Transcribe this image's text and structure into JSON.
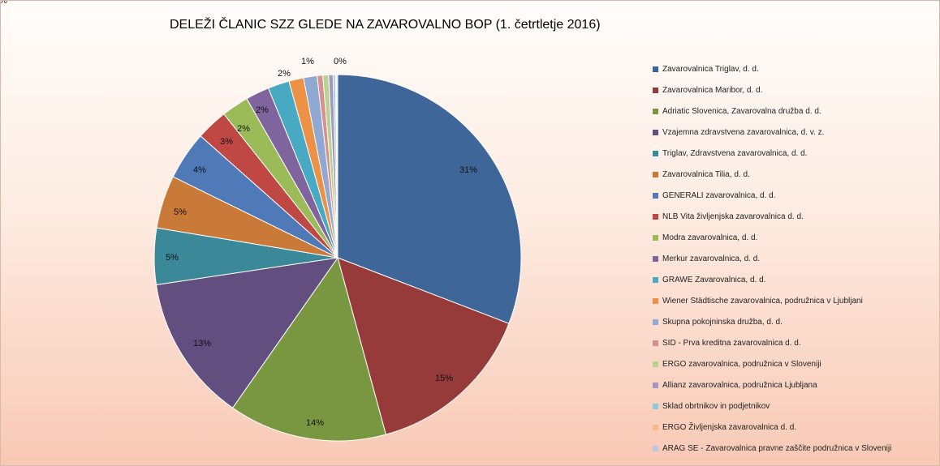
{
  "chart_data": {
    "type": "pie",
    "title": "DELEŽI ČLANIC SZZ GLEDE NA ZAVAROVALNO BOP (1. četrtletje 2016)",
    "legend_position": "right",
    "slices": [
      {
        "name": "Zavarovalnica Triglav, d. d.",
        "value": 31,
        "label": "31%",
        "color": "#3f6698"
      },
      {
        "name": "Zavarovalnica Maribor, d. d.",
        "value": 15,
        "label": "15%",
        "color": "#973b3a"
      },
      {
        "name": "Adriatic Slovenica, Zavarovalna družba d. d.",
        "value": 14,
        "label": "14%",
        "color": "#799641"
      },
      {
        "name": "Vzajemna zdravstvena zavarovalnica, d. v. z.",
        "value": 13,
        "label": "13%",
        "color": "#634e80"
      },
      {
        "name": "Triglav, Zdravstvena zavarovalnica, d. d.",
        "value": 5,
        "label": "5%",
        "color": "#3a8898"
      },
      {
        "name": "Zavarovalnica Tilia, d. d.",
        "value": 4.7,
        "label": "5%",
        "color": "#c97a38"
      },
      {
        "name": "GENERALI zavarovalnica, d. d.",
        "value": 4.3,
        "label": "4%",
        "color": "#4f79b7"
      },
      {
        "name": "NLB Vita življenjska zavarovalnica d. d.",
        "value": 2.8,
        "label": "3%",
        "color": "#bf4845"
      },
      {
        "name": "Modra zavarovalnica, d. d.",
        "value": 2.4,
        "label": "2%",
        "color": "#9abb58"
      },
      {
        "name": "Merkur zavarovalnica, d. d.",
        "value": 2.1,
        "label": "2%",
        "color": "#7f649e"
      },
      {
        "name": "GRAWE Zavarovalnica, d. d.",
        "value": 1.9,
        "label": "2%",
        "color": "#48a9c2"
      },
      {
        "name": "Wiener Städtische zavarovalnica, podružnica v Ljubljani",
        "value": 1.3,
        "label": "1%",
        "color": "#ed9146"
      },
      {
        "name": "Skupna pokojninska družba, d. d.",
        "value": 1.2,
        "label": "1%",
        "color": "#91a8d2"
      },
      {
        "name": "SID - Prva kreditna zavarovalnica d. d.",
        "value": 0.5,
        "label": "",
        "color": "#d7908f"
      },
      {
        "name": "ERGO zavarovalnica, podružnica v Sloveniji",
        "value": 0.5,
        "label": "",
        "color": "#b8d38f"
      },
      {
        "name": "Allianz zavarovalnica, podružnica Ljubljana",
        "value": 0.4,
        "label": "",
        "color": "#a697c2"
      },
      {
        "name": "Sklad obrtnikov in podjetnikov",
        "value": 0.2,
        "label": "",
        "color": "#8ccbdc"
      },
      {
        "name": "ERGO Življenjska zavarovalnica d. d.",
        "value": 0.1,
        "label": "",
        "color": "#f9b98e"
      },
      {
        "name": "ARAG SE - Zavarovalnica pravne zaščite podružnica v Sloveniji",
        "value": 0.1,
        "label": "0%",
        "color": "#b9c6e4"
      }
    ]
  }
}
